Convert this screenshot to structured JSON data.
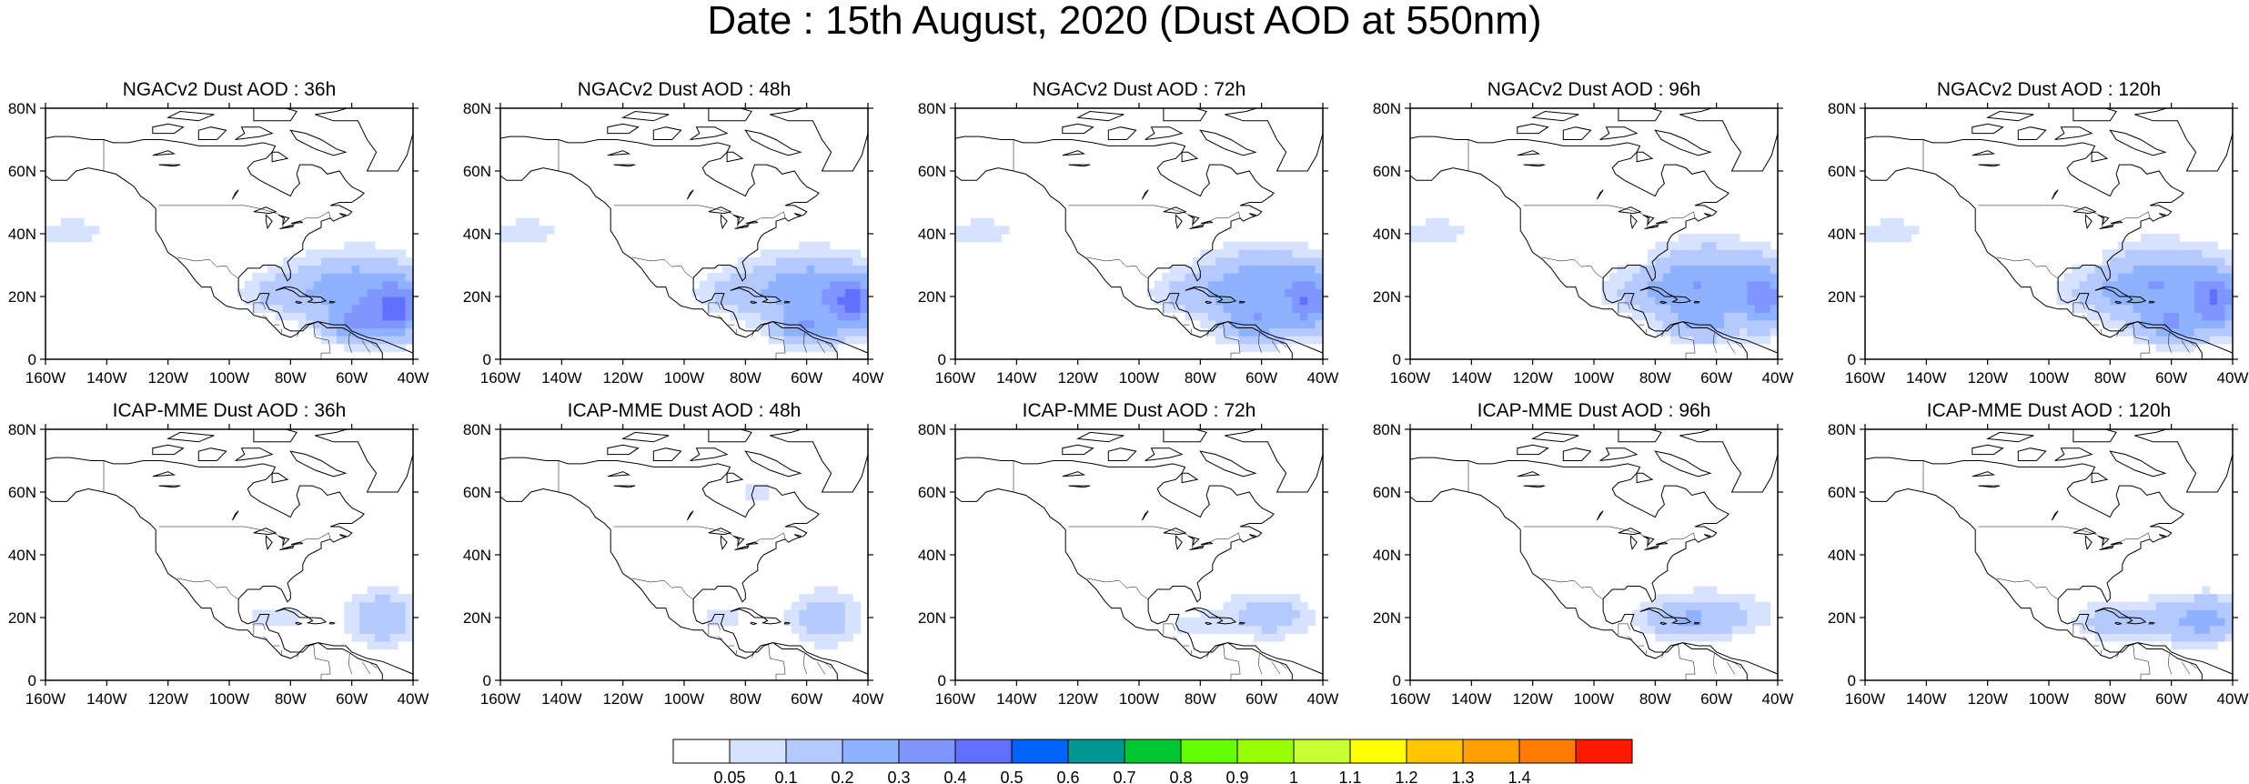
{
  "title": "Date : 15th August, 2020 (Dust AOD at 550nm)",
  "panels": [
    {
      "title": "NGACv2 Dust AOD : 36h",
      "lead_h": 36,
      "model": "NGACv2"
    },
    {
      "title": "NGACv2 Dust AOD : 48h",
      "lead_h": 48,
      "model": "NGACv2"
    },
    {
      "title": "NGACv2 Dust AOD : 72h",
      "lead_h": 72,
      "model": "NGACv2"
    },
    {
      "title": "NGACv2 Dust AOD : 96h",
      "lead_h": 96,
      "model": "NGACv2"
    },
    {
      "title": "NGACv2 Dust AOD : 120h",
      "lead_h": 120,
      "model": "NGACv2"
    },
    {
      "title": "ICAP-MME Dust AOD : 36h",
      "lead_h": 36,
      "model": "ICAP-MME"
    },
    {
      "title": "ICAP-MME Dust AOD : 48h",
      "lead_h": 48,
      "model": "ICAP-MME"
    },
    {
      "title": "ICAP-MME Dust AOD : 72h",
      "lead_h": 72,
      "model": "ICAP-MME"
    },
    {
      "title": "ICAP-MME Dust AOD : 96h",
      "lead_h": 96,
      "model": "ICAP-MME"
    },
    {
      "title": "ICAP-MME Dust AOD : 120h",
      "lead_h": 120,
      "model": "ICAP-MME"
    }
  ],
  "x_ticks": [
    "160W",
    "140W",
    "120W",
    "100W",
    "80W",
    "60W",
    "40W"
  ],
  "y_ticks": [
    "0",
    "20N",
    "40N",
    "60N",
    "80N"
  ],
  "extent": {
    "lon": [
      -160,
      -40
    ],
    "lat": [
      0,
      80
    ]
  },
  "colorbar": {
    "colors": [
      "#ffffff",
      "#d6e2ff",
      "#b5c9ff",
      "#8eb2ff",
      "#7f96ff",
      "#6370ff",
      "#0063ff",
      "#009696",
      "#00c633",
      "#63ff00",
      "#96ff00",
      "#c6ff33",
      "#ffff00",
      "#ffc600",
      "#ffa000",
      "#ff7c00",
      "#ff1900"
    ],
    "labels": [
      "0.05",
      "0.1",
      "0.2",
      "0.3",
      "0.4",
      "0.5",
      "0.6",
      "0.7",
      "0.8",
      "0.9",
      "1",
      "1.1",
      "1.2",
      "1.3",
      "1.4"
    ]
  }
}
